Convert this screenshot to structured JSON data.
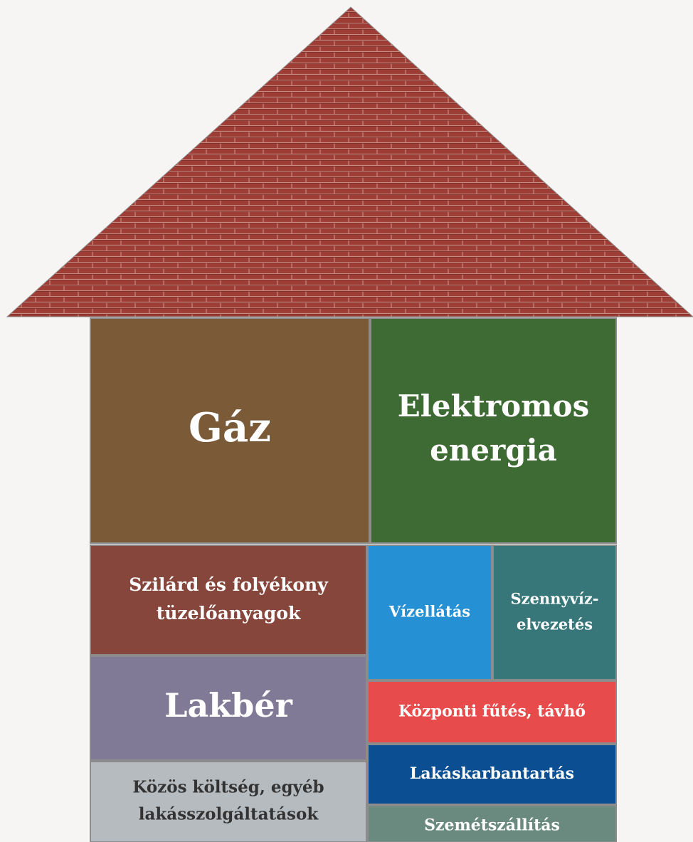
{
  "nodes": [
    {
      "lines": [
        "Gáz"
      ]
    },
    {
      "lines": [
        "Elektromos",
        "energia"
      ]
    },
    {
      "lines": [
        "Szilárd és folyékony",
        "tüzelőanyagok"
      ]
    },
    {
      "lines": [
        "Vízellátás"
      ]
    },
    {
      "lines": [
        "Szennyvíz-",
        "elvezetés"
      ]
    },
    {
      "lines": [
        "Lakbér"
      ]
    },
    {
      "lines": [
        "Közös költség, egyéb",
        "lakásszolgáltatások"
      ]
    },
    {
      "lines": [
        "Központi fűtés, távhő"
      ]
    },
    {
      "lines": [
        "Lakáskarbantartás"
      ]
    },
    {
      "lines": [
        "Szemétszállítás"
      ]
    }
  ]
}
